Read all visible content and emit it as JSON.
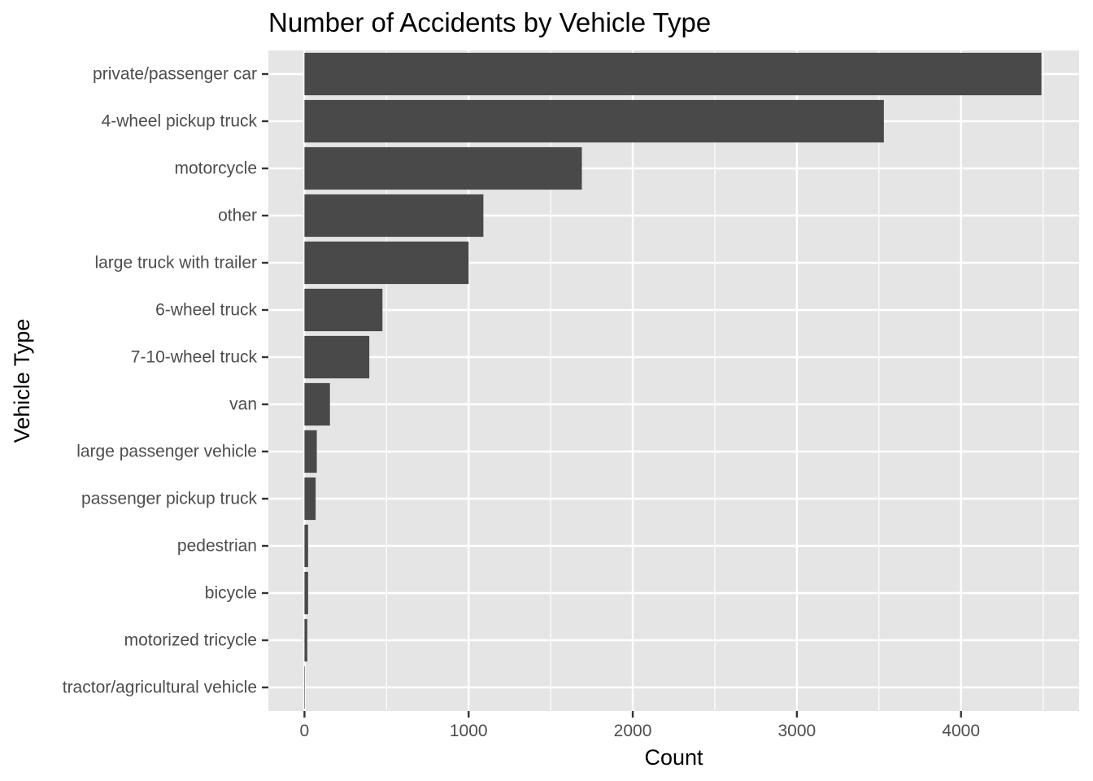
{
  "chart_data": {
    "type": "bar",
    "orientation": "horizontal",
    "title": "Number of Accidents by Vehicle Type",
    "xlabel": "Count",
    "ylabel": "Vehicle Type",
    "categories": [
      "private/passenger car",
      "4-wheel pickup truck",
      "motorcycle",
      "other",
      "large truck with trailer",
      "6-wheel truck",
      "7-10-wheel truck",
      "van",
      "large passenger vehicle",
      "passenger pickup truck",
      "pedestrian",
      "bicycle",
      "motorized tricycle",
      "tractor/agricultural vehicle"
    ],
    "values": [
      4490,
      3530,
      1690,
      1090,
      1000,
      475,
      395,
      155,
      75,
      68,
      22,
      22,
      17,
      3
    ],
    "xlim": [
      -220,
      4720
    ],
    "x_ticks": [
      0,
      1000,
      2000,
      3000,
      4000
    ],
    "x_tick_labels": [
      "0",
      "1000",
      "2000",
      "3000",
      "4000"
    ],
    "grid": true,
    "legend": "none",
    "colors": {
      "bar": "#494949",
      "panel_background": "#e5e5e5",
      "grid_line": "#ffffff",
      "tick_label": "#4d4d4d",
      "tick_mark": "#333333",
      "title": "#000000"
    }
  }
}
